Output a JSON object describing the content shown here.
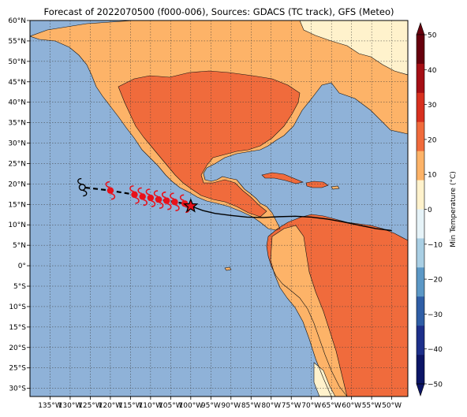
{
  "title": "Forecast of 2022070500 (f000-006), Sources: GDACS (TC track), GFS (Meteo)",
  "map": {
    "lon_range": [
      -140,
      -46
    ],
    "lat_range": [
      -32,
      60
    ],
    "lat_ticks": [
      {
        "value": 60,
        "label": "60°N"
      },
      {
        "value": 55,
        "label": "55°N"
      },
      {
        "value": 50,
        "label": "50°N"
      },
      {
        "value": 45,
        "label": "45°N"
      },
      {
        "value": 40,
        "label": "40°N"
      },
      {
        "value": 35,
        "label": "35°N"
      },
      {
        "value": 30,
        "label": "30°N"
      },
      {
        "value": 25,
        "label": "25°N"
      },
      {
        "value": 20,
        "label": "20°N"
      },
      {
        "value": 15,
        "label": "15°N"
      },
      {
        "value": 10,
        "label": "10°N"
      },
      {
        "value": 5,
        "label": "5°N"
      },
      {
        "value": 0,
        "label": "0°"
      },
      {
        "value": -5,
        "label": "5°S"
      },
      {
        "value": -10,
        "label": "10°S"
      },
      {
        "value": -15,
        "label": "15°S"
      },
      {
        "value": -20,
        "label": "20°S"
      },
      {
        "value": -25,
        "label": "25°S"
      },
      {
        "value": -30,
        "label": "30°S"
      }
    ],
    "lon_ticks": [
      {
        "value": -135,
        "label": "135°W"
      },
      {
        "value": -130,
        "label": "130°W"
      },
      {
        "value": -125,
        "label": "125°W"
      },
      {
        "value": -120,
        "label": "120°W"
      },
      {
        "value": -115,
        "label": "115°W"
      },
      {
        "value": -110,
        "label": "110°W"
      },
      {
        "value": -105,
        "label": "105°W"
      },
      {
        "value": -100,
        "label": "100°W"
      },
      {
        "value": -95,
        "label": "95°W"
      },
      {
        "value": -90,
        "label": "90°W"
      },
      {
        "value": -85,
        "label": "85°W"
      },
      {
        "value": -80,
        "label": "80°W"
      },
      {
        "value": -75,
        "label": "75°W"
      },
      {
        "value": -70,
        "label": "70°W"
      },
      {
        "value": -65,
        "label": "65°W"
      },
      {
        "value": -60,
        "label": "60°W"
      },
      {
        "value": -55,
        "label": "55°W"
      },
      {
        "value": -50,
        "label": "50°W"
      }
    ],
    "colors": {
      "ocean": "#8fb2d8",
      "land_warm": "#f06b3c",
      "land_mild": "#fdb368",
      "land_cool": "#fff2cc",
      "land_cold": "#e8f4f8",
      "track_past": "#000000",
      "track_forecast_marker": "#e8111a"
    }
  },
  "colorbar": {
    "label": "Min Temperature (°C)",
    "ticks": [
      "50",
      "40",
      "30",
      "20",
      "10",
      "0",
      "−10",
      "−20",
      "−30",
      "−40",
      "−50"
    ],
    "colors": [
      "#67000d",
      "#a50f15",
      "#d7301f",
      "#f06b3c",
      "#fdb368",
      "#fff2cc",
      "#e6f3f8",
      "#a9cfe4",
      "#5c98c6",
      "#2f5ea6",
      "#1d2f8a",
      "#0c1566"
    ]
  },
  "storm_track": {
    "forecast_points": [
      {
        "lon": -101.5,
        "lat": 15.2
      },
      {
        "lon": -104,
        "lat": 15.6
      },
      {
        "lon": -106,
        "lat": 15.9
      },
      {
        "lon": -108,
        "lat": 16.2
      },
      {
        "lon": -110,
        "lat": 16.6
      },
      {
        "lon": -112,
        "lat": 16.9
      },
      {
        "lon": -114,
        "lat": 17.4
      },
      {
        "lon": -120,
        "lat": 18.4
      }
    ],
    "outlook_point": {
      "lon": -127,
      "lat": 19.2
    },
    "current_position": {
      "lon": -100,
      "lat": 14.6
    },
    "past_track": [
      {
        "lon": -100,
        "lat": 14.6
      },
      {
        "lon": -97,
        "lat": 13.5
      },
      {
        "lon": -94,
        "lat": 12.8
      },
      {
        "lon": -90,
        "lat": 12.3
      },
      {
        "lon": -86,
        "lat": 11.9
      },
      {
        "lon": -82,
        "lat": 11.8
      },
      {
        "lon": -78,
        "lat": 12.0
      },
      {
        "lon": -74,
        "lat": 12.1
      },
      {
        "lon": -70,
        "lat": 11.9
      },
      {
        "lon": -66,
        "lat": 11.4
      },
      {
        "lon": -62,
        "lat": 10.7
      },
      {
        "lon": -58,
        "lat": 9.9
      },
      {
        "lon": -54,
        "lat": 9.1
      },
      {
        "lon": -50,
        "lat": 8.6
      }
    ]
  }
}
